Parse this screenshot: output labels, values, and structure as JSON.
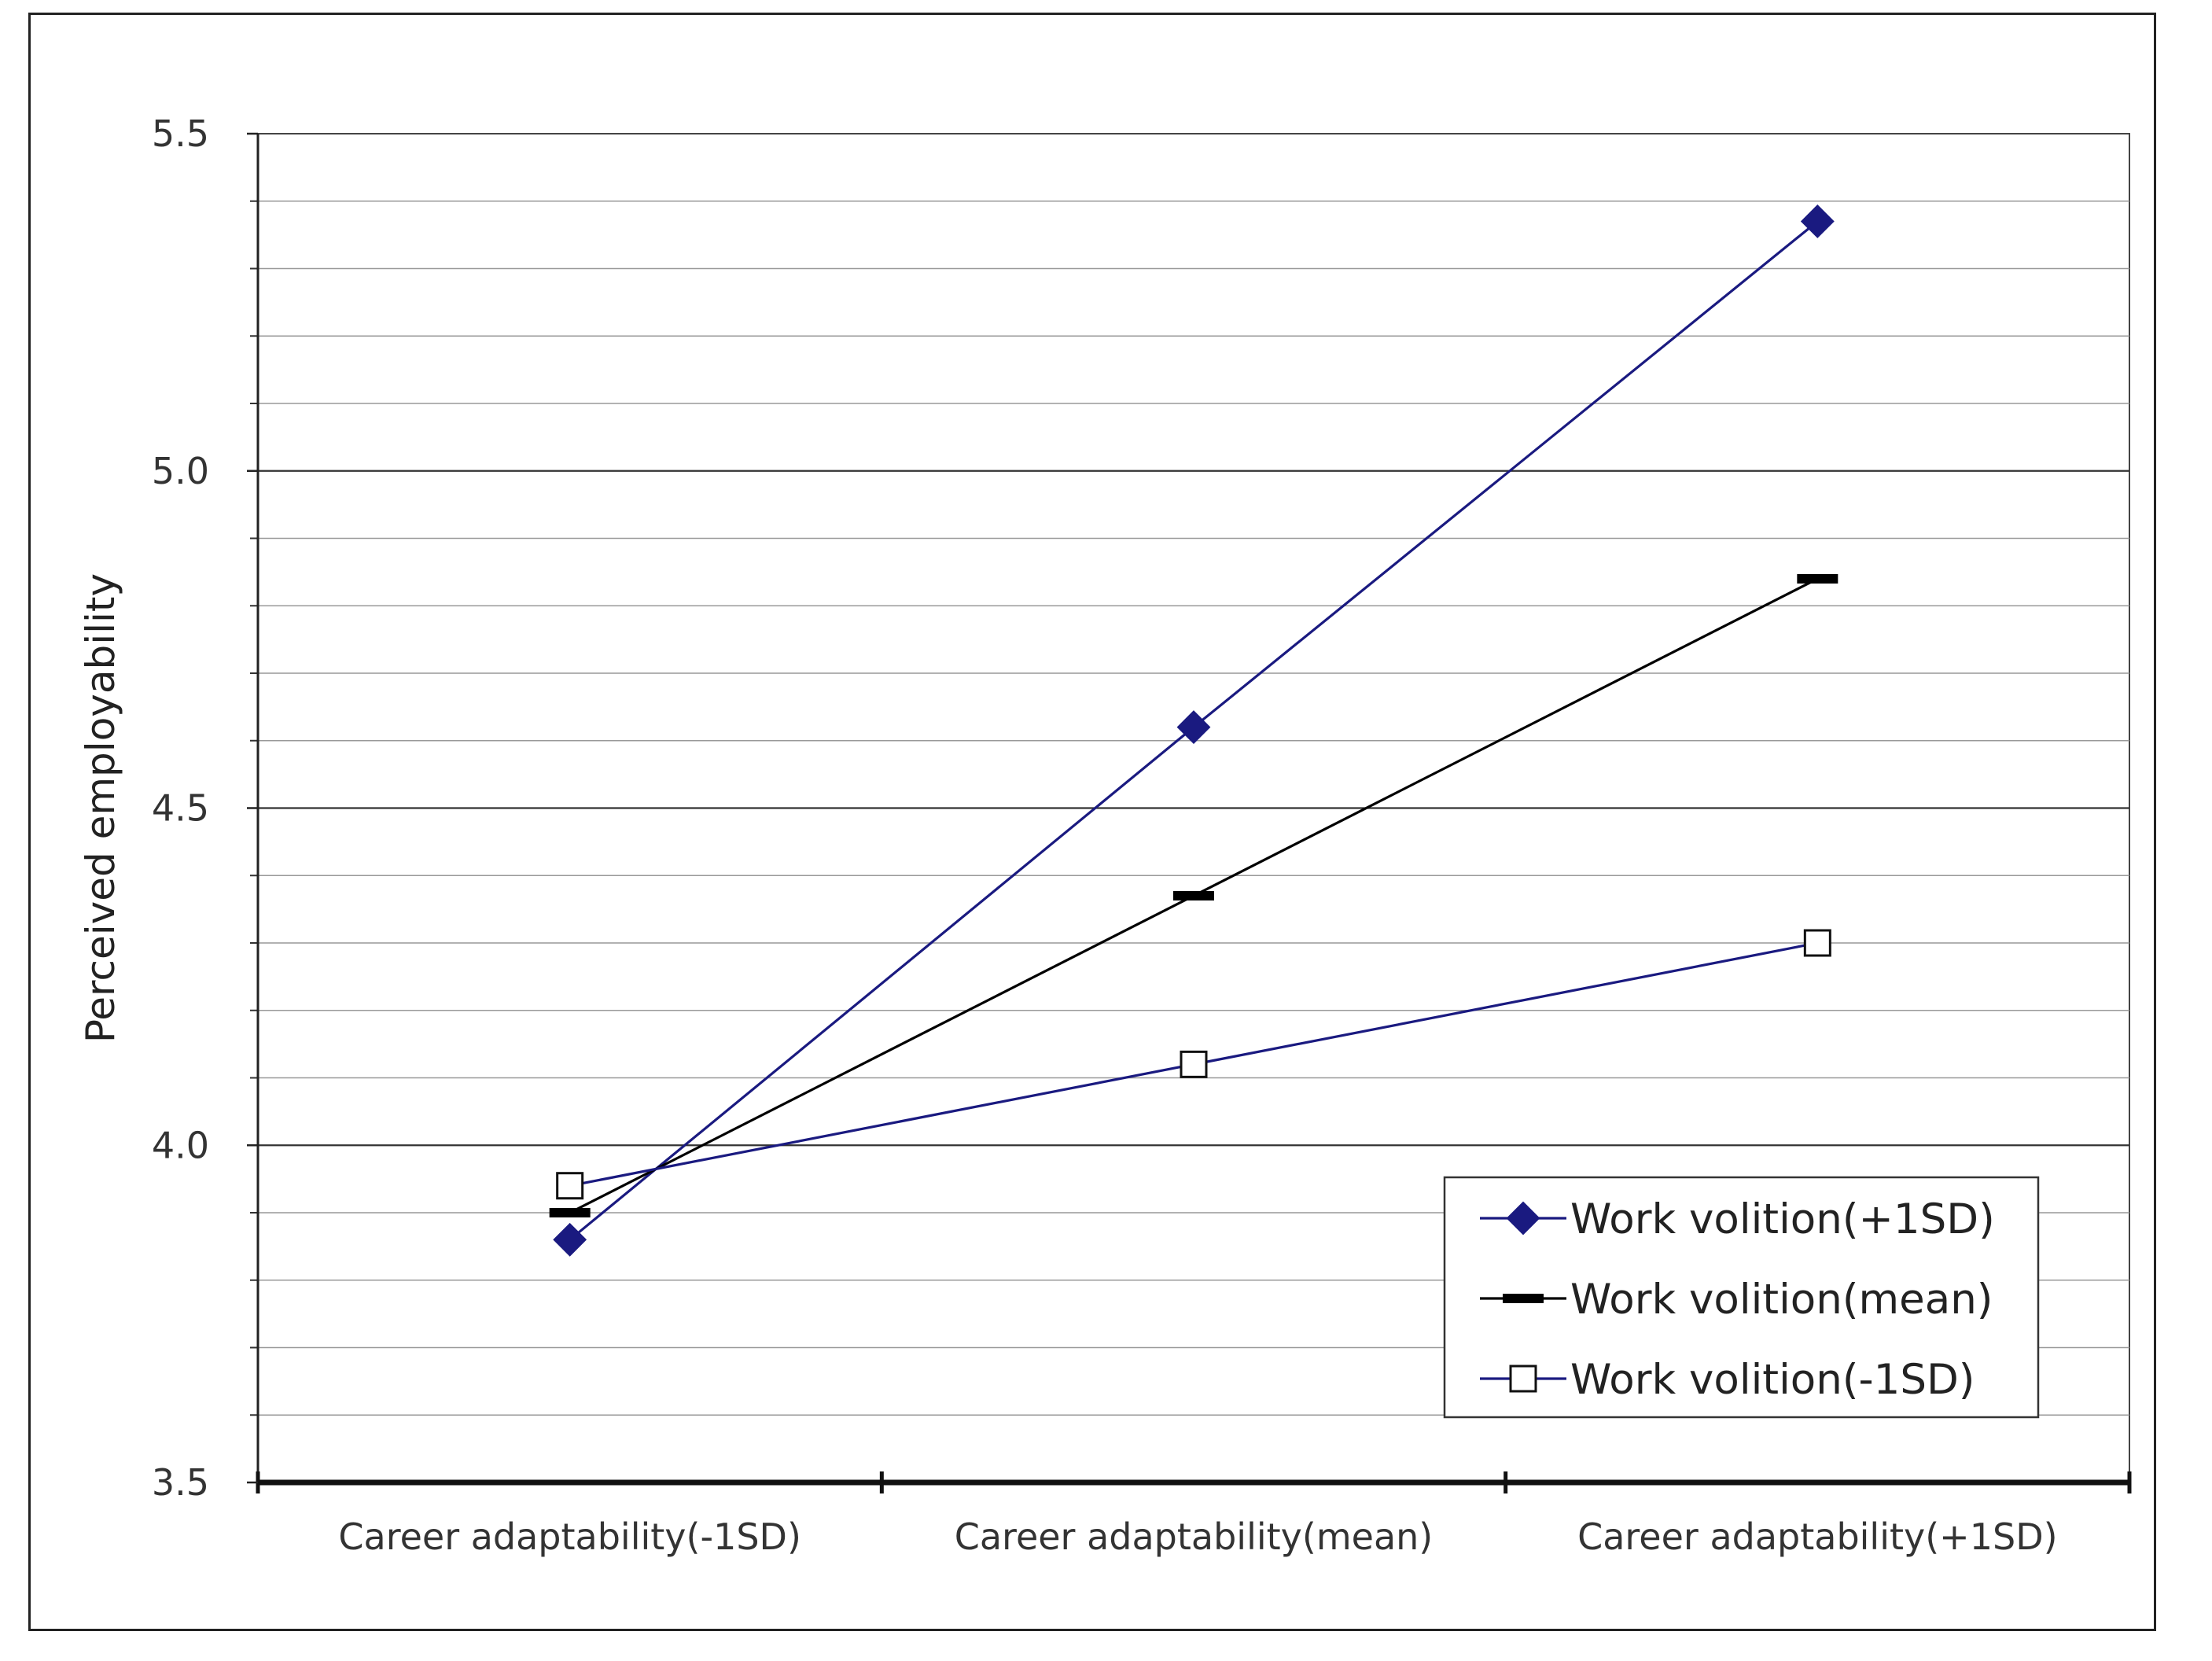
{
  "chart_data": {
    "type": "line",
    "ylabel": "Perceived employability",
    "xlabel": "",
    "ylim": [
      3.5,
      5.5
    ],
    "ytick_labels": [
      "5.5",
      "5.0",
      "4.5",
      "4.0",
      "3.5"
    ],
    "yticks": [
      5.5,
      5.0,
      4.5,
      4.0,
      3.5
    ],
    "minor_step": 0.1,
    "categories": [
      "Career adaptability(-1SD)",
      "Career adaptability(mean)",
      "Career adaptability(+1SD)"
    ],
    "series": [
      {
        "name": "Work volition(+1SD)",
        "values": [
          3.86,
          4.62,
          5.37
        ],
        "color": "#1a1a80",
        "marker": "diamond"
      },
      {
        "name": "Work volition(mean)",
        "values": [
          3.9,
          4.37,
          4.84
        ],
        "color": "#000000",
        "marker": "dash"
      },
      {
        "name": "Work volition(-1SD)",
        "values": [
          3.94,
          4.12,
          4.3
        ],
        "color": "#1a1a80",
        "marker": "open-square"
      }
    ],
    "legend_position": "bottom-right",
    "grid": true
  }
}
